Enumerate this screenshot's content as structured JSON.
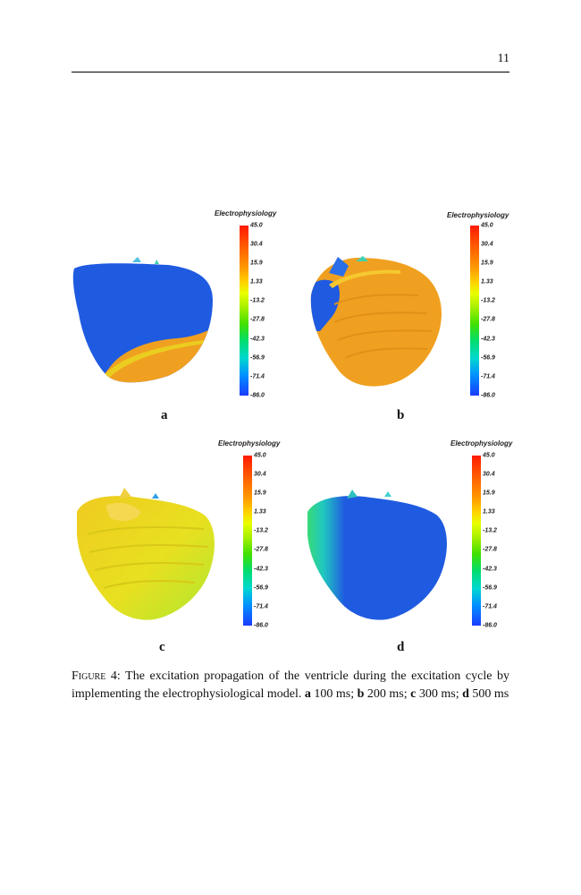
{
  "page": {
    "number": "11"
  },
  "colorbar": {
    "title": "Electrophysiology",
    "ticks": [
      "45.0",
      "30.4",
      "15.9",
      "1.33",
      "-13.2",
      "-27.8",
      "-42.3",
      "-56.9",
      "-71.4",
      "-86.0"
    ]
  },
  "panels": [
    {
      "label": "a"
    },
    {
      "label": "b"
    },
    {
      "label": "c"
    },
    {
      "label": "d"
    }
  ],
  "caption": {
    "figure_label": "Figure 4:",
    "text": "The excitation propagation of the ventricle during the excitation cycle by implementing the electrophysiological model.",
    "items": [
      {
        "letter": "a",
        "text": "100 ms;"
      },
      {
        "letter": "b",
        "text": "200 ms;"
      },
      {
        "letter": "c",
        "text": "300 ms;"
      },
      {
        "letter": "d",
        "text": "500 ms"
      }
    ]
  },
  "colors": {
    "resting_blue": "#1f5be0",
    "depolarized_orange": "#f0a020",
    "mid_yellow": "#e8e020",
    "green": "#40e060"
  }
}
